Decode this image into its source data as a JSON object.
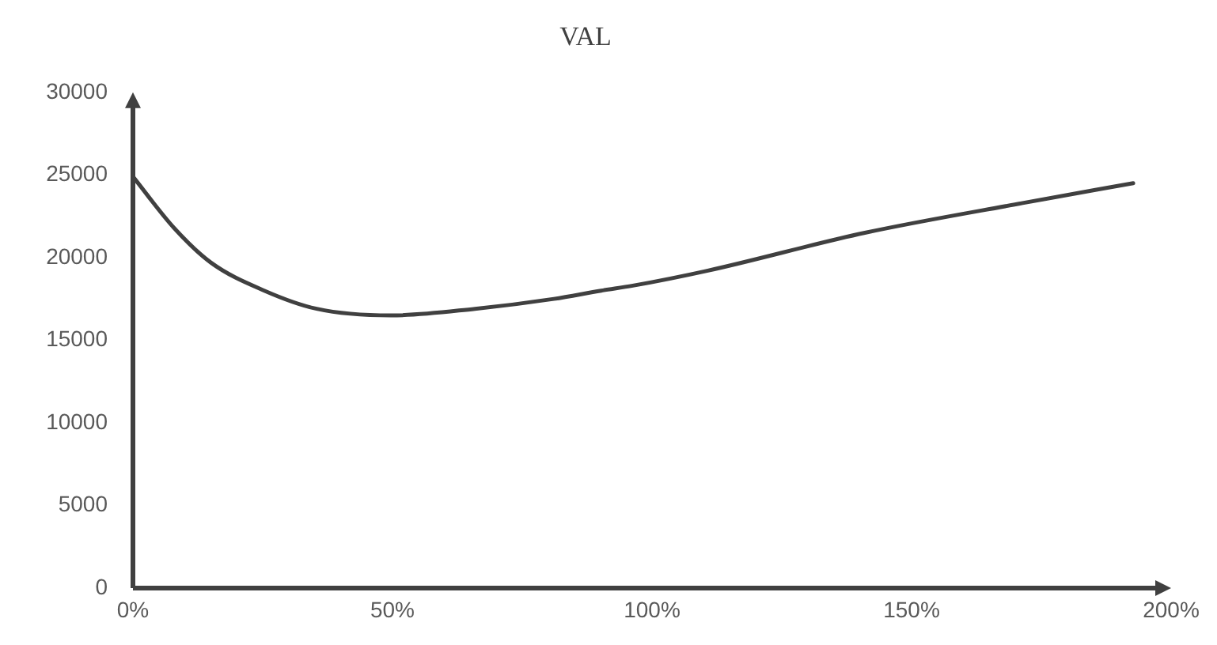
{
  "chart_data": {
    "type": "line",
    "title": "VAL",
    "x": [
      0,
      7.9,
      15,
      25.3,
      35.4,
      49.7,
      65.9,
      81.1,
      90.2,
      96.3,
      110.6,
      141,
      171.4,
      192.7
    ],
    "series": [
      {
        "color": "#404040",
        "values": [
          24900,
          21800,
          19700,
          18000,
          16900,
          16500,
          16900,
          17500,
          18000,
          18300,
          19200,
          21500,
          23300,
          24500
        ]
      }
    ],
    "xlim": [
      0,
      200
    ],
    "xticks": [
      {
        "value": 0,
        "label": "0%"
      },
      {
        "value": 50,
        "label": "50%"
      },
      {
        "value": 100,
        "label": "100%"
      },
      {
        "value": 150,
        "label": "150%"
      },
      {
        "value": 200,
        "label": "200%"
      }
    ],
    "ylim": [
      0,
      30000
    ],
    "yticks": [
      0,
      5000,
      10000,
      15000,
      20000,
      25000,
      30000
    ],
    "grid": false,
    "legend": false,
    "marker": "none",
    "line_style": "solid"
  }
}
